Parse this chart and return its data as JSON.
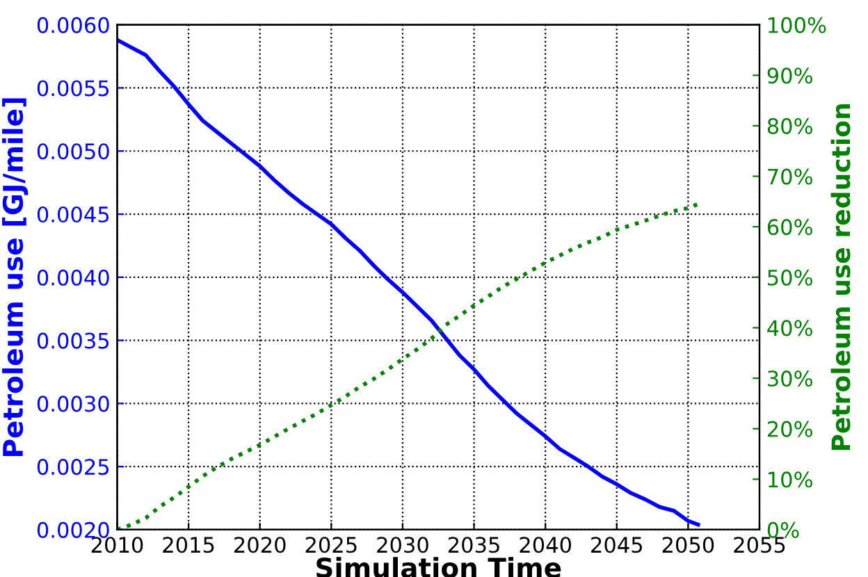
{
  "chart_data": {
    "type": "line",
    "xlabel": "Simulation Time",
    "ylabel": "Petroleum use [GJ/mile]",
    "y2label": "Petroleum use reduction",
    "xlim": [
      2010,
      2055
    ],
    "xticks": [
      2010,
      2015,
      2020,
      2025,
      2030,
      2035,
      2040,
      2045,
      2050,
      2055
    ],
    "ylim": [
      0.002,
      0.006
    ],
    "yticks": [
      {
        "value": 0.002,
        "label": "0.0020"
      },
      {
        "value": 0.0025,
        "label": "0.0025"
      },
      {
        "value": 0.003,
        "label": "0.0030"
      },
      {
        "value": 0.0035,
        "label": "0.0035"
      },
      {
        "value": 0.004,
        "label": "0.0040"
      },
      {
        "value": 0.0045,
        "label": "0.0045"
      },
      {
        "value": 0.005,
        "label": "0.0050"
      },
      {
        "value": 0.0055,
        "label": "0.0055"
      },
      {
        "value": 0.006,
        "label": "0.0060"
      }
    ],
    "y2lim": [
      0,
      100
    ],
    "y2ticks": [
      {
        "value": 0,
        "label": "0%"
      },
      {
        "value": 10,
        "label": "10%"
      },
      {
        "value": 20,
        "label": "20%"
      },
      {
        "value": 30,
        "label": "30%"
      },
      {
        "value": 40,
        "label": "40%"
      },
      {
        "value": 50,
        "label": "50%"
      },
      {
        "value": 60,
        "label": "60%"
      },
      {
        "value": 70,
        "label": "70%"
      },
      {
        "value": 80,
        "label": "80%"
      },
      {
        "value": 90,
        "label": "90%"
      },
      {
        "value": 100,
        "label": "100%"
      }
    ],
    "grid": true,
    "legend": false,
    "series": [
      {
        "color": "#0000ff",
        "line_style": "solid",
        "x": [
          2010,
          2011,
          2012,
          2013,
          2014,
          2015,
          2016,
          2017,
          2018,
          2019,
          2020,
          2021,
          2022,
          2023,
          2024,
          2025,
          2026,
          2027,
          2028,
          2029,
          2030,
          2031,
          2032,
          2033,
          2034,
          2035,
          2036,
          2037,
          2038,
          2039,
          2040,
          2041,
          2042,
          2043,
          2044,
          2045,
          2046,
          2047,
          2048,
          2049,
          2050,
          2050.7
        ],
        "values": [
          0.00588,
          0.00582,
          0.00576,
          0.00563,
          0.00551,
          0.00537,
          0.00524,
          0.00515,
          0.00506,
          0.00497,
          0.00488,
          0.00477,
          0.00467,
          0.00458,
          0.0045,
          0.00442,
          0.00431,
          0.00421,
          0.00409,
          0.00398,
          0.00388,
          0.00377,
          0.00366,
          0.00352,
          0.00338,
          0.00327,
          0.00314,
          0.00303,
          0.00292,
          0.00283,
          0.00274,
          0.00264,
          0.00257,
          0.0025,
          0.00242,
          0.00236,
          0.00229,
          0.00224,
          0.00218,
          0.00215,
          0.00207,
          0.00204
        ]
      },
      {
        "color": "#008000",
        "line_style": "dotted",
        "axis": "y2",
        "x": [
          2010,
          2011,
          2012,
          2013,
          2014,
          2015,
          2016,
          2017,
          2018,
          2019,
          2020,
          2021,
          2022,
          2023,
          2024,
          2025,
          2026,
          2027,
          2028,
          2029,
          2030,
          2031,
          2032,
          2033,
          2034,
          2035,
          2036,
          2037,
          2038,
          2039,
          2040,
          2041,
          2042,
          2043,
          2044,
          2045,
          2046,
          2047,
          2048,
          2049,
          2050,
          2050.7
        ],
        "values": [
          0,
          1,
          2.3,
          4.6,
          6.4,
          8.5,
          10.6,
          12.4,
          14,
          15.4,
          16.8,
          18.4,
          20,
          21.5,
          23,
          24.7,
          26.4,
          28.3,
          29.9,
          31.8,
          33.8,
          35.7,
          37.8,
          40.5,
          42.4,
          44.4,
          46.2,
          48.1,
          49.7,
          51.3,
          52.9,
          54.3,
          55.7,
          56.9,
          58,
          59.4,
          60.3,
          61.2,
          62.2,
          63.1,
          63.7,
          64.5
        ]
      }
    ]
  }
}
